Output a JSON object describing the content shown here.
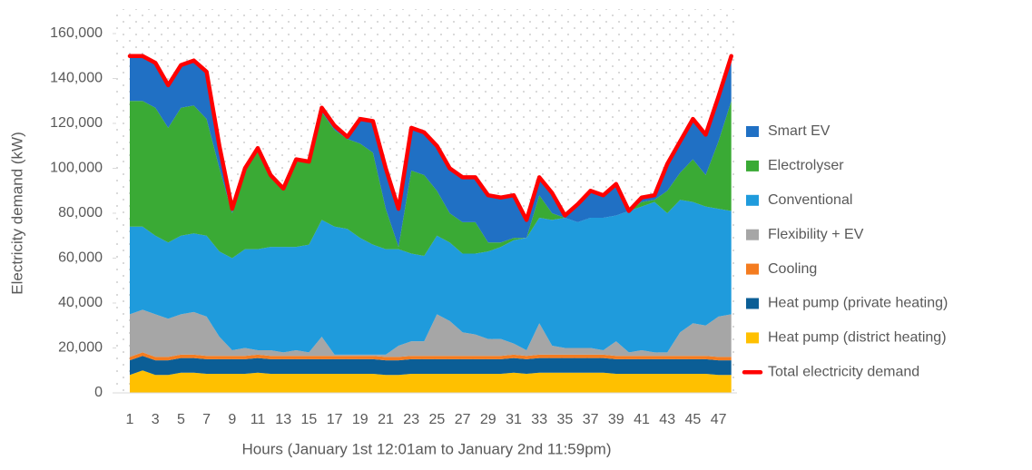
{
  "chart_data": {
    "type": "stacked-area",
    "y_label": "Electricity demand (kW)",
    "x_label": "Hours (January 1st 12:01am to January 2nd 11:59pm)",
    "categories": [
      "1",
      null,
      "3",
      null,
      "5",
      null,
      "7",
      null,
      "9",
      null,
      "11",
      null,
      "13",
      null,
      "15",
      null,
      "17",
      null,
      "19",
      null,
      "21",
      null,
      "23",
      null,
      "25",
      null,
      "27",
      null,
      "29",
      null,
      "31",
      null,
      "33",
      null,
      "35",
      null,
      "37",
      null,
      "39",
      null,
      "41",
      null,
      "43",
      null,
      "45",
      null,
      "47",
      null
    ],
    "ylim": [
      0,
      160000
    ],
    "yticks": [
      0,
      {
        "value": 20000,
        "label": "20,000"
      },
      {
        "value": 40000,
        "label": "40,000"
      },
      {
        "value": 60000,
        "label": "60,000"
      },
      {
        "value": 80000,
        "label": "80,000"
      },
      {
        "value": 100000,
        "label": "100,000"
      },
      {
        "value": 120000,
        "label": "120,000"
      },
      {
        "value": 140000,
        "label": "140,000"
      },
      {
        "value": 160000,
        "label": "160,000"
      }
    ],
    "series": [
      {
        "name": "Heat pump (district heating)",
        "color": "#ffc000",
        "values": [
          8000,
          10000,
          8000,
          8000,
          9000,
          9000,
          8500,
          8500,
          8500,
          8500,
          9000,
          8500,
          8500,
          8500,
          8500,
          8500,
          8500,
          8500,
          8500,
          8500,
          8000,
          8000,
          8500,
          8500,
          8500,
          8500,
          8500,
          8500,
          8500,
          8500,
          9000,
          8500,
          9000,
          9000,
          9000,
          9000,
          9000,
          9000,
          8500,
          8500,
          8500,
          8500,
          8500,
          8500,
          8500,
          8500,
          8000,
          8000
        ]
      },
      {
        "name": "Heat pump (private heating)",
        "color": "#0b5e96",
        "values": [
          6500,
          6500,
          6500,
          6500,
          6500,
          6500,
          6500,
          6500,
          6500,
          6500,
          6500,
          6500,
          6500,
          6500,
          6500,
          6500,
          6500,
          6500,
          6500,
          6500,
          6500,
          6500,
          6500,
          6500,
          6500,
          6500,
          6500,
          6500,
          6500,
          6500,
          6500,
          6500,
          6500,
          6500,
          6500,
          6500,
          6500,
          6500,
          6500,
          6500,
          6500,
          6500,
          6500,
          6500,
          6500,
          6500,
          6500,
          6500
        ]
      },
      {
        "name": "Cooling",
        "color": "#f47c20",
        "values": [
          1500,
          1500,
          1500,
          1500,
          1500,
          1500,
          1500,
          1500,
          1500,
          1500,
          1500,
          1500,
          1500,
          1500,
          1500,
          1500,
          1500,
          1500,
          1500,
          1500,
          1500,
          1500,
          1500,
          1500,
          1500,
          1500,
          1500,
          1500,
          1500,
          1500,
          1500,
          1500,
          1500,
          1500,
          1500,
          1500,
          1500,
          1500,
          1500,
          1500,
          1500,
          1500,
          1500,
          1500,
          1500,
          1500,
          1500,
          1500
        ]
      },
      {
        "name": "Flexibility + EV",
        "color": "#a6a6a6",
        "values": [
          19000,
          19000,
          19000,
          17000,
          18000,
          19000,
          17500,
          8500,
          2500,
          3500,
          2000,
          2500,
          1500,
          2500,
          1500,
          8500,
          500,
          500,
          500,
          500,
          1000,
          5000,
          6500,
          6500,
          18500,
          15500,
          10500,
          9500,
          7500,
          7500,
          5000,
          2500,
          14000,
          4000,
          3000,
          3000,
          3000,
          2000,
          6500,
          1500,
          2500,
          1500,
          1500,
          10500,
          14500,
          13500,
          18000,
          19000
        ]
      },
      {
        "name": "Conventional",
        "color": "#1f9bdc",
        "values": [
          39000,
          37000,
          35000,
          34000,
          35000,
          35000,
          36000,
          38000,
          41000,
          44000,
          45000,
          46000,
          47000,
          46000,
          48000,
          52000,
          57000,
          56000,
          52000,
          49000,
          47000,
          43000,
          39000,
          38000,
          35000,
          35000,
          35000,
          36000,
          39000,
          41000,
          46000,
          50000,
          47000,
          56000,
          58000,
          56000,
          58000,
          59000,
          56000,
          63000,
          64000,
          67000,
          62000,
          59000,
          54000,
          53000,
          48000,
          46000
        ]
      },
      {
        "name": "Electrolyser",
        "color": "#3aaa35",
        "values": [
          56000,
          56000,
          57000,
          51000,
          57000,
          57000,
          52000,
          37000,
          20000,
          35000,
          44000,
          32000,
          26000,
          38000,
          37000,
          48000,
          43000,
          40000,
          42000,
          41000,
          18000,
          1000,
          37000,
          36000,
          20000,
          13000,
          14000,
          14000,
          4000,
          2000,
          1000,
          0,
          10000,
          3000,
          0,
          0,
          0,
          0,
          0,
          0,
          2000,
          1000,
          10000,
          12000,
          19000,
          14000,
          30000,
          49000
        ]
      },
      {
        "name": "Smart EV",
        "color": "#2070c4",
        "values": [
          20000,
          20000,
          20000,
          19000,
          19000,
          20000,
          21000,
          10000,
          2000,
          1000,
          1000,
          0,
          0,
          1000,
          0,
          2000,
          2000,
          1000,
          11000,
          14000,
          18000,
          17000,
          19000,
          19000,
          20000,
          20000,
          20000,
          20000,
          21000,
          20000,
          19000,
          8000,
          8000,
          9000,
          1000,
          8000,
          12000,
          10000,
          14000,
          0,
          2000,
          2000,
          12000,
          14000,
          18000,
          18000,
          20000,
          20000
        ]
      },
      {
        "name": "Total electricity demand",
        "color": "#ff0000",
        "type": "line",
        "values": [
          150000,
          150000,
          147000,
          137000,
          146000,
          148000,
          143000,
          110000,
          82000,
          100000,
          109000,
          97000,
          91000,
          104000,
          103000,
          127000,
          119000,
          114000,
          122000,
          121000,
          100000,
          82000,
          118000,
          116000,
          110000,
          100000,
          96000,
          96000,
          88000,
          87000,
          88000,
          77000,
          96000,
          89000,
          79000,
          84000,
          90000,
          88000,
          93000,
          81000,
          87000,
          88000,
          102000,
          112000,
          122000,
          115000,
          132000,
          150000
        ]
      }
    ]
  }
}
